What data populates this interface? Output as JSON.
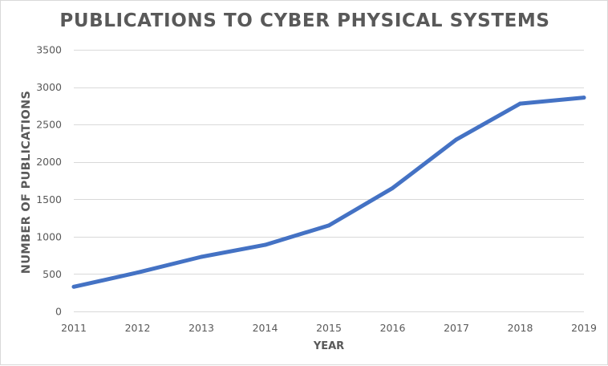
{
  "colors": {
    "series_line": "#4472c4",
    "gridline": "#d9d9d9",
    "text": "#595959",
    "background": "#ffffff"
  },
  "chart_data": {
    "type": "line",
    "title": "PUBLICATIONS TO CYBER PHYSICAL SYSTEMS",
    "xlabel": "YEAR",
    "ylabel": "NUMBER OF PUBLICATIONS",
    "ylim": [
      0,
      3500
    ],
    "yticks": [
      0,
      500,
      1000,
      1500,
      2000,
      2500,
      3000,
      3500
    ],
    "x": [
      "2011",
      "2012",
      "2013",
      "2014",
      "2015",
      "2016",
      "2017",
      "2018",
      "2019"
    ],
    "series": [
      {
        "values": [
          330,
          520,
          730,
          890,
          1150,
          1650,
          2300,
          2780,
          2860
        ]
      }
    ],
    "grid": true,
    "legend": "none"
  }
}
